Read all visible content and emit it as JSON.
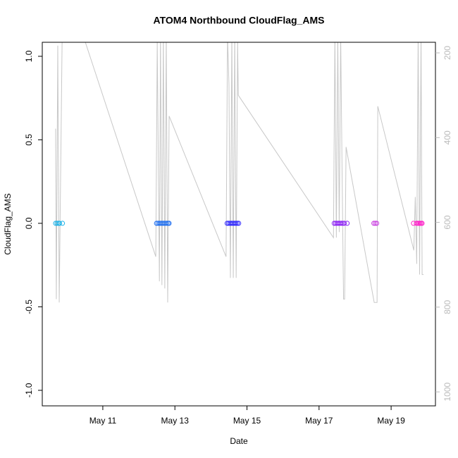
{
  "chart_data": {
    "type": "scatter",
    "title": "ATOM4 Northbound CloudFlag_AMS",
    "xlabel": "Date",
    "ylabel": "CloudFlag_AMS",
    "xlim": [
      9.32,
      20.23
    ],
    "xticks": [
      {
        "value": 11,
        "label": "May 11"
      },
      {
        "value": 13,
        "label": "May 13"
      },
      {
        "value": 15,
        "label": "May 15"
      },
      {
        "value": 17,
        "label": "May 17"
      },
      {
        "value": 19,
        "label": "May 19"
      }
    ],
    "ylim": [
      -1.093,
      1.084
    ],
    "yticks": [
      {
        "value": -1.0,
        "label": "-1.0"
      },
      -0.5,
      {
        "value": 0.0,
        "label": "0.0"
      },
      0.5,
      {
        "value": 1.0,
        "label": "1.0"
      }
    ],
    "y2lim": [
      1033,
      175
    ],
    "y2ticks": [
      200,
      400,
      600,
      800,
      1000
    ],
    "points": {
      "x": [
        9.69,
        9.73,
        9.77,
        9.8,
        9.88,
        12.49,
        12.53,
        12.57,
        12.61,
        12.65,
        12.69,
        12.73,
        12.77,
        12.81,
        12.84,
        14.45,
        14.49,
        14.53,
        14.57,
        14.61,
        14.65,
        14.69,
        14.73,
        14.77,
        17.42,
        17.46,
        17.5,
        17.54,
        17.58,
        17.62,
        17.66,
        17.7,
        17.78,
        18.52,
        18.56,
        18.6,
        19.62,
        19.7,
        19.74,
        19.77,
        19.8,
        19.83,
        19.86
      ],
      "values": [
        0,
        0,
        0,
        0,
        0,
        0,
        0,
        0,
        0,
        0,
        0,
        0,
        0,
        0,
        0,
        0,
        0,
        0,
        0,
        0,
        0,
        0,
        0,
        0,
        0,
        0,
        0,
        0,
        0,
        0,
        0,
        0,
        0,
        0,
        0,
        0,
        0,
        0,
        0,
        0,
        0,
        0,
        0
      ],
      "colors": [
        "#19b2e8",
        "#19b2e8",
        "#19b2e8",
        "#19b2e8",
        "#19b2e8",
        "#1a6cf0",
        "#1a6cf0",
        "#1a6cf0",
        "#1a6cf0",
        "#1a6cf0",
        "#1a6cf0",
        "#1a6cf0",
        "#1a6cf0",
        "#1a6cf0",
        "#1a6cf0",
        "#2a22ff",
        "#2a22ff",
        "#2a22ff",
        "#2a22ff",
        "#2a22ff",
        "#2a22ff",
        "#2a22ff",
        "#2a22ff",
        "#2a22ff",
        "#8a1cf5",
        "#8a1cf5",
        "#8a1cf5",
        "#8a1cf5",
        "#8a1cf5",
        "#8a1cf5",
        "#8a1cf5",
        "#8a1cf5",
        "#8a1cf5",
        "#c83ae0",
        "#c83ae0",
        "#c83ae0",
        "#ff1ec8",
        "#ff1ec8",
        "#ff1ec8",
        "#ff1ec8",
        "#ff1ec8",
        "#ff1ec8",
        "#ff1ec8"
      ]
    },
    "line": {
      "axis": "y2",
      "color": "#c8c8c8",
      "x": [
        9.69,
        9.71,
        9.75,
        9.79,
        9.87,
        9.9,
        10.45,
        12.47,
        12.51,
        12.57,
        12.6,
        12.64,
        12.68,
        12.72,
        12.76,
        12.8,
        12.84,
        14.42,
        14.46,
        14.5,
        14.54,
        14.58,
        14.62,
        14.66,
        14.7,
        14.74,
        14.76,
        17.4,
        17.44,
        17.48,
        17.52,
        17.56,
        17.6,
        17.64,
        17.68,
        17.71,
        17.75,
        18.53,
        18.61,
        18.63,
        19.63,
        19.67,
        19.71,
        19.75,
        19.79,
        19.83,
        19.86,
        19.9
      ],
      "values": [
        379,
        781,
        183,
        789,
        175,
        142,
        158,
        681,
        175,
        739,
        158,
        748,
        158,
        756,
        158,
        789,
        349,
        681,
        158,
        275,
        731,
        158,
        731,
        158,
        731,
        175,
        300,
        636,
        158,
        636,
        158,
        623,
        158,
        490,
        781,
        781,
        422,
        789,
        789,
        326,
        666,
        540,
        698,
        158,
        723,
        158,
        723,
        723
      ]
    }
  }
}
